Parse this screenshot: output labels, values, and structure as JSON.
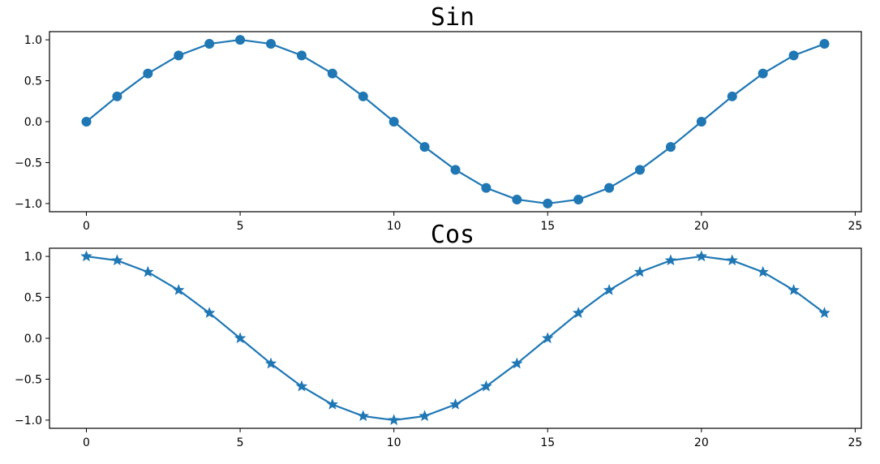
{
  "chart_data": [
    {
      "type": "line",
      "title": "Sin",
      "marker": "circle",
      "color": "#1f77b4",
      "x": [
        0,
        1,
        2,
        3,
        4,
        5,
        6,
        7,
        8,
        9,
        10,
        11,
        12,
        13,
        14,
        15,
        16,
        17,
        18,
        19,
        20,
        21,
        22,
        23,
        24
      ],
      "series": [
        {
          "values": [
            0.0,
            0.309,
            0.588,
            0.809,
            0.951,
            1.0,
            0.951,
            0.809,
            0.588,
            0.309,
            0.0,
            -0.309,
            -0.588,
            -0.809,
            -0.951,
            -1.0,
            -0.951,
            -0.809,
            -0.588,
            -0.309,
            0.0,
            0.309,
            0.588,
            0.809,
            0.951
          ]
        }
      ],
      "xlim": [
        -1.2,
        25.2
      ],
      "ylim": [
        -1.1,
        1.1
      ],
      "xticks": [
        0,
        5,
        10,
        15,
        20,
        25
      ],
      "xtick_labels": [
        "0",
        "5",
        "10",
        "15",
        "20",
        "25"
      ],
      "yticks": [
        1.0,
        0.5,
        0.0,
        -0.5,
        -1.0
      ],
      "ytick_labels": [
        "1.0",
        "0.5",
        "0.0",
        "−0.5",
        "−1.0"
      ],
      "grid": false
    },
    {
      "type": "line",
      "title": "Cos",
      "marker": "star",
      "color": "#1f77b4",
      "x": [
        0,
        1,
        2,
        3,
        4,
        5,
        6,
        7,
        8,
        9,
        10,
        11,
        12,
        13,
        14,
        15,
        16,
        17,
        18,
        19,
        20,
        21,
        22,
        23,
        24
      ],
      "series": [
        {
          "values": [
            1.0,
            0.951,
            0.809,
            0.588,
            0.309,
            0.0,
            -0.309,
            -0.588,
            -0.809,
            -0.951,
            -1.0,
            -0.951,
            -0.809,
            -0.588,
            -0.309,
            0.0,
            0.309,
            0.588,
            0.809,
            0.951,
            1.0,
            0.951,
            0.809,
            0.588,
            0.309
          ]
        }
      ],
      "xlim": [
        -1.2,
        25.2
      ],
      "ylim": [
        -1.1,
        1.1
      ],
      "xticks": [
        0,
        5,
        10,
        15,
        20,
        25
      ],
      "xtick_labels": [
        "0",
        "5",
        "10",
        "15",
        "20",
        "25"
      ],
      "yticks": [
        1.0,
        0.5,
        0.0,
        -0.5,
        -1.0
      ],
      "ytick_labels": [
        "1.0",
        "0.5",
        "0.0",
        "−0.5",
        "−1.0"
      ],
      "grid": false
    }
  ]
}
